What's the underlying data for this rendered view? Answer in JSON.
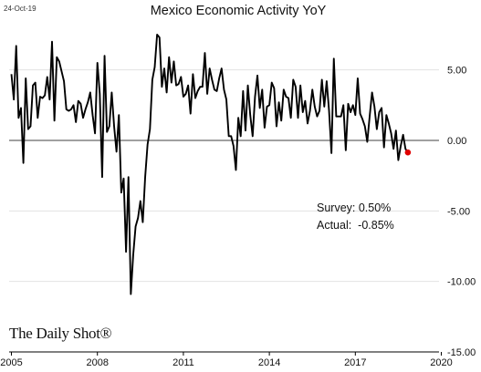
{
  "date_stamp": "24-Oct-19",
  "brand": "The Daily Shot®",
  "colors": {
    "line": "#000000",
    "last_point": "#e00000",
    "zero_line": "#000000",
    "grid": "#e3e3e3"
  },
  "chart_data": {
    "type": "line",
    "title": "Mexico Economic Activity YoY",
    "xlabel": "",
    "ylabel": "",
    "xlim": [
      2004.92,
      2019.92
    ],
    "ylim": [
      -15,
      7.5
    ],
    "x_ticks": [
      2005,
      2008,
      2011,
      2014,
      2017,
      2020
    ],
    "x_tick_labels": [
      "2005",
      "2008",
      "2011",
      "2014",
      "2017",
      "2020"
    ],
    "y_ticks": [
      5,
      0,
      -5,
      -10,
      -15
    ],
    "y_tick_labels": [
      "5.00",
      "0.00",
      "-5.00",
      "-10.00",
      "-15.00"
    ],
    "y_axis_side": "right",
    "grid": "horizontal",
    "zero_line": true,
    "annotations": [
      "Survey: 0.50%",
      "Actual:  -0.85%"
    ],
    "series": [
      {
        "start": [
          2005,
          1
        ],
        "frequency": "monthly",
        "values": [
          4.7,
          2.9,
          6.7,
          1.6,
          2.3,
          -1.6,
          4.4,
          0.8,
          1.0,
          3.9,
          4.1,
          1.6,
          3.1,
          3.0,
          3.2,
          4.5,
          2.9,
          7.0,
          1.4,
          5.9,
          5.6,
          4.9,
          4.2,
          2.2,
          2.1,
          2.2,
          2.5,
          1.3,
          2.8,
          2.6,
          1.6,
          2.2,
          2.7,
          3.4,
          1.8,
          0.5,
          5.5,
          3.3,
          -2.6,
          6.0,
          0.6,
          1.0,
          3.4,
          1.0,
          -0.8,
          1.8,
          -3.7,
          -2.7,
          -7.9,
          -2.6,
          -10.9,
          -8.1,
          -6.1,
          -5.5,
          -4.3,
          -5.8,
          -2.6,
          -0.3,
          0.8,
          4.3,
          5.2,
          7.5,
          7.3,
          3.8,
          5.1,
          3.4,
          5.9,
          4.1,
          5.6,
          3.9,
          4.0,
          4.5,
          3.1,
          3.3,
          3.9,
          1.9,
          4.7,
          3.0,
          3.5,
          3.8,
          3.8,
          6.2,
          3.3,
          5.1,
          4.3,
          3.6,
          3.5,
          4.4,
          5.1,
          3.6,
          2.9,
          0.3,
          0.3,
          -0.4,
          -2.1,
          1.6,
          0.3,
          3.5,
          0.7,
          3.9,
          1.8,
          0.3,
          3.1,
          4.6,
          2.3,
          3.6,
          0.9,
          2.4,
          2.5,
          4.1,
          3.7,
          1.0,
          2.7,
          1.4,
          3.6,
          3.1,
          3.0,
          1.6,
          4.3,
          3.8,
          1.6,
          3.9,
          2.0,
          2.8,
          1.2,
          2.1,
          3.6,
          2.4,
          1.7,
          2.1,
          4.3,
          2.4,
          4.2,
          2.1,
          -0.9,
          5.8,
          1.7,
          1.7,
          1.7,
          2.5,
          -0.7,
          2.6,
          2.0,
          2.5,
          1.8,
          4.4,
          1.9,
          1.5,
          1.0,
          -0.1,
          1.7,
          3.4,
          2.4,
          0.8,
          2.0,
          2.3,
          -0.5,
          1.8,
          1.2,
          0.5,
          -0.6,
          0.7,
          -1.4,
          -0.4,
          0.4,
          -0.6,
          -0.85
        ]
      }
    ]
  }
}
